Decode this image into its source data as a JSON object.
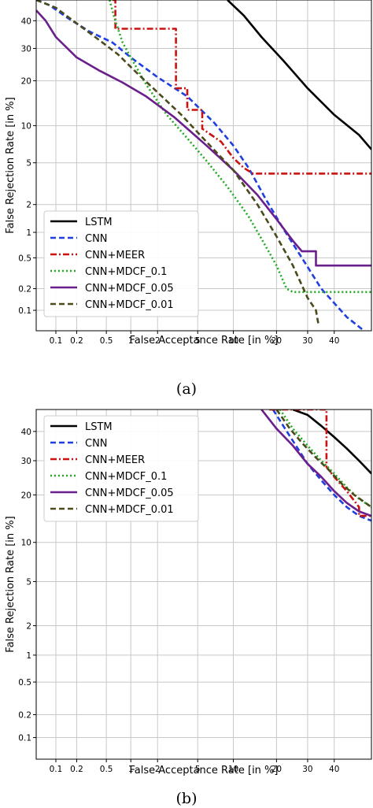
{
  "chart_data": [
    {
      "type": "line",
      "panel": "a",
      "caption": "(a)",
      "xlabel": "False Acceptance Rate [in %]",
      "ylabel": "False Rejection Rate [in %]",
      "xscale": "normal-deviate",
      "yscale": "normal-deviate",
      "xlim": [
        0.05,
        55
      ],
      "ylim": [
        0.05,
        48
      ],
      "xticks": [
        "0.1",
        "0.2",
        "0.5",
        "1",
        "2",
        "5",
        "10",
        "20",
        "30",
        "40"
      ],
      "yticks": [
        "0.1",
        "0.2",
        "0.5",
        "1",
        "2",
        "5",
        "10",
        "20",
        "30",
        "40"
      ],
      "grid": true,
      "legend_position": "lower-left",
      "series": [
        {
          "name": "LSTM",
          "color": "#000000",
          "dash": "solid",
          "x": [
            9,
            12,
            16,
            22,
            30,
            40,
            50,
            55
          ],
          "y": [
            48,
            42,
            34,
            26,
            18,
            12,
            8.5,
            6.5
          ]
        },
        {
          "name": "CNN",
          "color": "#1f3fe0",
          "dash": "dashed",
          "x": [
            0.05,
            0.08,
            0.15,
            0.3,
            0.6,
            1.0,
            2.0,
            4.0,
            7.0,
            10,
            13,
            17,
            22,
            28,
            35,
            45,
            52
          ],
          "y": [
            48,
            46,
            41,
            36,
            32,
            27,
            21,
            16,
            10.5,
            7,
            4.5,
            2.3,
            1.1,
            0.5,
            0.2,
            0.08,
            0.05
          ]
        },
        {
          "name": "CNN+MEER",
          "color": "#cc1111",
          "dash": "dashdot",
          "x": [
            0.6,
            0.65,
            0.65,
            3.1,
            3.1,
            4.0,
            4.0,
            5.5,
            5.5,
            8.0,
            10,
            12,
            14,
            55
          ],
          "y": [
            48,
            48,
            37,
            37,
            18,
            18,
            13,
            13,
            9.5,
            7.5,
            5.5,
            4.5,
            4.0,
            4.0
          ]
        },
        {
          "name": "CNN+MDCF_0.1",
          "color": "#22aa22",
          "dash": "dotted",
          "x": [
            0.55,
            0.62,
            0.7,
            0.8,
            1.0,
            1.5,
            2.5,
            4.0,
            6.0,
            9.0,
            13,
            17,
            20,
            23,
            25,
            27,
            55
          ],
          "y": [
            48,
            42,
            37,
            32,
            27,
            19,
            12,
            8,
            5.2,
            3.0,
            1.5,
            0.7,
            0.4,
            0.2,
            0.18,
            0.18,
            0.18
          ]
        },
        {
          "name": "CNN+MDCF_0.05",
          "color": "#6a1f8c",
          "dash": "solid",
          "x": [
            0.05,
            0.07,
            0.1,
            0.2,
            0.4,
            0.8,
            1.5,
            3.0,
            6.0,
            10,
            15,
            20,
            25,
            28,
            30,
            33,
            33,
            55
          ],
          "y": [
            44,
            40,
            34,
            27,
            23,
            19.5,
            16,
            11.5,
            7,
            4.3,
            2.5,
            1.4,
            0.8,
            0.6,
            0.6,
            0.6,
            0.4,
            0.4
          ]
        },
        {
          "name": "CNN+MDCF_0.01",
          "color": "#4a4a1a",
          "dash": "dashed",
          "x": [
            0.05,
            0.1,
            0.2,
            0.4,
            0.7,
            1.2,
            2.0,
            3.5,
            6.0,
            10,
            15,
            20,
            25,
            30,
            33,
            34
          ],
          "y": [
            48,
            45,
            39,
            33,
            28,
            22,
            17,
            12,
            7.5,
            4.3,
            2.0,
            0.9,
            0.4,
            0.15,
            0.1,
            0.06
          ]
        }
      ]
    },
    {
      "type": "line",
      "panel": "b",
      "caption": "(b)",
      "xlabel": "False Acceptance Rate [in %]",
      "ylabel": "False Rejection Rate [in %]",
      "xscale": "normal-deviate",
      "yscale": "normal-deviate",
      "xlim": [
        0.05,
        55
      ],
      "ylim": [
        0.05,
        48
      ],
      "xticks": [
        "0.1",
        "0.2",
        "0.5",
        "1",
        "2",
        "5",
        "10",
        "20",
        "30",
        "40"
      ],
      "yticks": [
        "0.1",
        "0.2",
        "0.5",
        "1",
        "2",
        "5",
        "10",
        "20",
        "30",
        "40"
      ],
      "grid": true,
      "legend_position": "upper-left",
      "series": [
        {
          "name": "LSTM",
          "color": "#000000",
          "dash": "solid",
          "x": [
            25,
            30,
            35,
            40,
            45,
            50,
            55
          ],
          "y": [
            48,
            46,
            42,
            38,
            34,
            30,
            26
          ]
        },
        {
          "name": "CNN",
          "color": "#1f3fe0",
          "dash": "dashed",
          "x": [
            19,
            22,
            26,
            30,
            35,
            40,
            45,
            50,
            55
          ],
          "y": [
            48,
            42,
            35,
            29,
            24,
            20,
            17,
            15,
            14
          ]
        },
        {
          "name": "CNN+MEER",
          "color": "#cc1111",
          "dash": "dashdot",
          "x": [
            18,
            37,
            37,
            40,
            45,
            50,
            50,
            55
          ],
          "y": [
            48,
            48,
            28,
            25,
            21,
            17,
            15,
            15
          ]
        },
        {
          "name": "CNN+MDCF_0.1",
          "color": "#22aa22",
          "dash": "dotted",
          "x": [
            21,
            25,
            30,
            35,
            40,
            45,
            50,
            55
          ],
          "y": [
            48,
            41,
            35,
            30,
            26,
            22,
            19,
            17
          ]
        },
        {
          "name": "CNN+MDCF_0.05",
          "color": "#6a1f8c",
          "dash": "solid",
          "x": [
            16,
            20,
            25,
            30,
            35,
            40,
            45,
            50,
            55
          ],
          "y": [
            48,
            41,
            35,
            29,
            25,
            21,
            18,
            16,
            15
          ]
        },
        {
          "name": "CNN+MDCF_0.01",
          "color": "#4a4a1a",
          "dash": "dashed",
          "x": [
            20,
            24,
            28,
            33,
            38,
            43,
            48,
            55
          ],
          "y": [
            48,
            41,
            36,
            31,
            27,
            23,
            20,
            17
          ]
        }
      ]
    }
  ]
}
